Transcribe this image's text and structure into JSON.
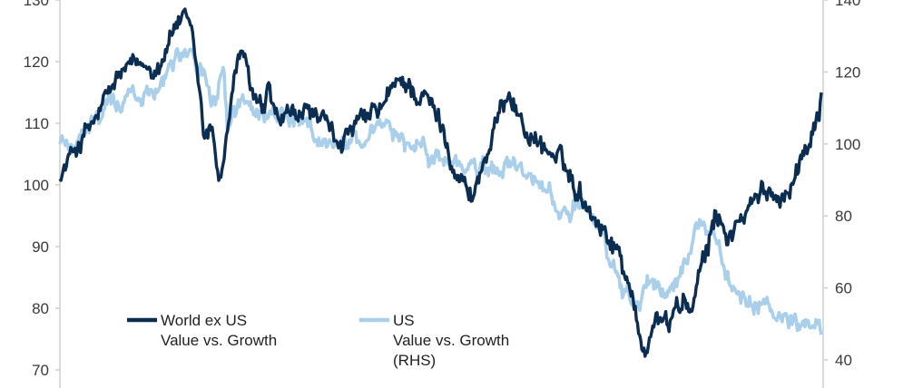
{
  "chart_data": {
    "type": "line",
    "title": "",
    "xlabel": "",
    "ylabel": "",
    "ylim_left": [
      70,
      130
    ],
    "ylim_right": [
      40,
      140
    ],
    "yticks_left": [
      70,
      80,
      90,
      100,
      110,
      120,
      130
    ],
    "yticks_right": [
      40,
      60,
      80,
      100,
      120,
      140
    ],
    "grid": false,
    "legend_position": "bottom-left",
    "series": [
      {
        "name": "World ex US Value vs. Growth",
        "legend_lines": [
          "World ex US",
          "Value vs. Growth"
        ],
        "axis": "left",
        "color": "#0b2d52",
        "t": [
          0,
          0.02,
          0.05,
          0.08,
          0.11,
          0.13,
          0.155,
          0.165,
          0.175,
          0.185,
          0.19,
          0.2,
          0.21,
          0.22,
          0.235,
          0.245,
          0.255,
          0.265,
          0.275,
          0.285,
          0.3,
          0.33,
          0.36,
          0.39,
          0.42,
          0.45,
          0.48,
          0.5,
          0.52,
          0.54,
          0.57,
          0.59,
          0.61,
          0.63,
          0.66,
          0.7,
          0.73,
          0.75,
          0.76,
          0.77,
          0.78,
          0.8,
          0.81,
          0.83,
          0.85,
          0.86,
          0.88,
          0.9,
          0.92,
          0.95,
          0.97,
          0.985,
          1.0
        ],
        "values": [
          101,
          106,
          111,
          118,
          119,
          120,
          127,
          126,
          122,
          113,
          107,
          109,
          101,
          109,
          122,
          118,
          114,
          111,
          114,
          110,
          110,
          112,
          107,
          109,
          112,
          117,
          114,
          110,
          103,
          98,
          108,
          116,
          109,
          107,
          103,
          96,
          90,
          84,
          75,
          73,
          79,
          77,
          81,
          80,
          89,
          95,
          92,
          95,
          98,
          99,
          103,
          108,
          115
        ]
      },
      {
        "name": "US Value vs. Growth (RHS)",
        "legend_lines": [
          "US",
          "Value vs. Growth",
          "(RHS)"
        ],
        "axis": "right",
        "color": "#a9cfea",
        "t": [
          0,
          0.03,
          0.06,
          0.09,
          0.12,
          0.155,
          0.17,
          0.19,
          0.2,
          0.215,
          0.22,
          0.235,
          0.26,
          0.29,
          0.32,
          0.35,
          0.39,
          0.43,
          0.46,
          0.5,
          0.55,
          0.6,
          0.63,
          0.66,
          0.69,
          0.71,
          0.73,
          0.75,
          0.76,
          0.77,
          0.78,
          0.8,
          0.82,
          0.84,
          0.85,
          0.86,
          0.88,
          0.9,
          0.93,
          0.96,
          0.98,
          1.0
        ],
        "values": [
          100,
          102,
          110,
          113,
          114,
          126,
          128,
          118,
          108,
          120,
          104,
          112,
          108,
          108,
          104,
          100,
          101,
          103,
          100,
          96,
          92,
          94,
          88,
          82,
          80,
          75,
          62,
          57,
          55,
          59,
          62,
          58,
          68,
          78,
          80,
          75,
          60,
          55,
          54,
          51,
          50,
          47
        ]
      }
    ]
  }
}
